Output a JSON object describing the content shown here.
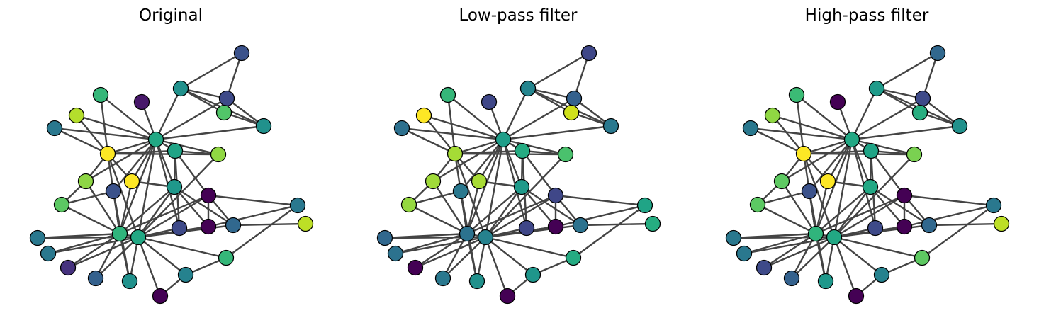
{
  "panels": [
    {
      "title": "Original",
      "node_colors": [
        "#3b528b",
        "#21918c",
        "#3e4a89",
        "#35b779",
        "#21918c",
        "#48186a",
        "#2a788e",
        "#52c569",
        "#b4de2c",
        "#22a884",
        "#fde725",
        "#20a486",
        "#90d743",
        "#1f988b",
        "#8ed645",
        "#440154",
        "#fde725",
        "#3b528b",
        "#5cc863",
        "#2a788e",
        "#3e4a89",
        "#440154",
        "#31688e",
        "#bddf26",
        "#2a788e",
        "#2a788e",
        "#30b47c",
        "#22a884",
        "#34618d",
        "#35b779",
        "#26828e",
        "#46327e",
        "#21918c",
        "#440154",
        "#1f9e89",
        "#23898e"
      ]
    },
    {
      "title": "Low-pass filter",
      "node_colors": [
        "#3f4788",
        "#25858e",
        "#34618d",
        "#35b779",
        "#2a788e",
        "#3f4788",
        "#2d708e",
        "#d0e11c",
        "#fde725",
        "#1f9e89",
        "#a5db36",
        "#25ab82",
        "#4ac16d",
        "#1f9a8a",
        "#a0da39",
        "#3f4788",
        "#a8db34",
        "#2a788e",
        "#95d840",
        "#20a486",
        "#3f4788",
        "#440154",
        "#2c728e",
        "#26ad81",
        "#31688e",
        "#2c728e",
        "#2c728e",
        "#26828e",
        "#2a788e",
        "#25ab82",
        "#1f968b",
        "#440154",
        "#21918c",
        "#440154",
        "#1f9e89",
        "#23898e"
      ]
    },
    {
      "title": "High-pass filter",
      "node_colors": [
        "#31688e",
        "#1e9b8a",
        "#3e4a89",
        "#3bbb75",
        "#21918c",
        "#440154",
        "#2a788e",
        "#28ae80",
        "#90d743",
        "#22a884",
        "#fde725",
        "#20a486",
        "#7ad151",
        "#22a884",
        "#5ec962",
        "#440154",
        "#fde725",
        "#3b528b",
        "#5cc863",
        "#2a788e",
        "#3e4a89",
        "#440154",
        "#31688e",
        "#bddf26",
        "#2a788e",
        "#2a788e",
        "#30b47c",
        "#22a884",
        "#34618d",
        "#5ec962",
        "#26828e",
        "#3e4a89",
        "#1f988b",
        "#440154",
        "#23898e",
        "#21918c"
      ]
    }
  ]
}
